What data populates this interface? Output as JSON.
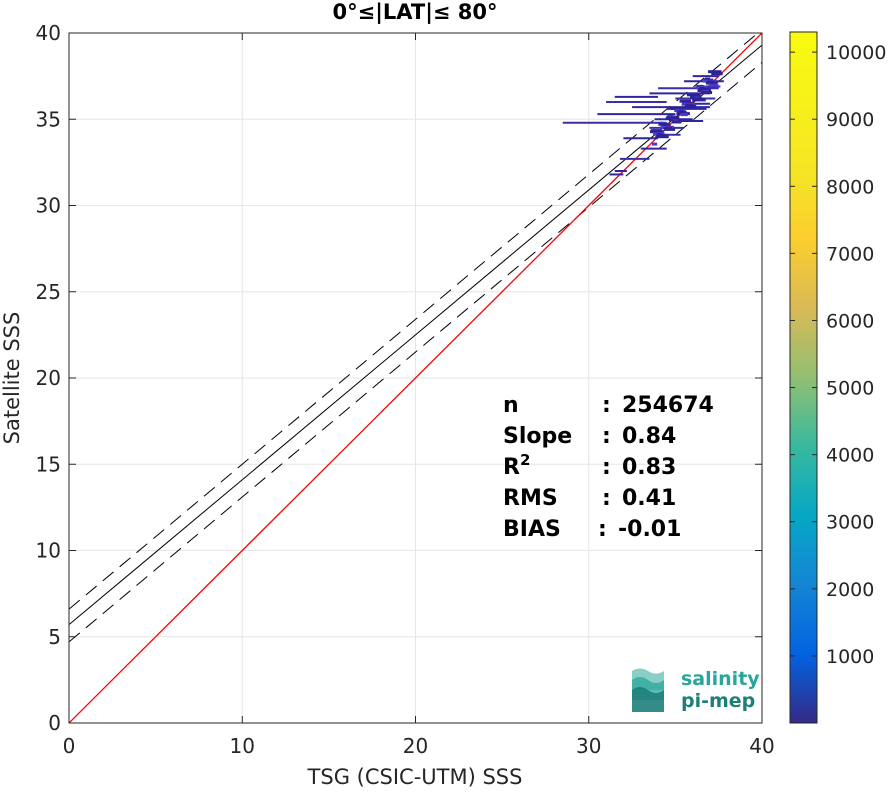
{
  "chart_data": {
    "type": "scatter",
    "title": "0°≤|LAT|≤ 80°",
    "xlabel": "TSG (CSIC-UTM) SSS",
    "ylabel": "Satellite SSS",
    "xlim": [
      0,
      40
    ],
    "ylim": [
      0,
      40
    ],
    "xticks": [
      "0",
      "10",
      "20",
      "30",
      "40"
    ],
    "yticks": [
      "0",
      "5",
      "10",
      "15",
      "20",
      "25",
      "30",
      "35",
      "40"
    ],
    "grid": true,
    "colorbar": {
      "min": 0,
      "max": 10300,
      "ticks": [
        "1000",
        "2000",
        "3000",
        "4000",
        "5000",
        "6000",
        "7000",
        "8000",
        "9000",
        "10000"
      ],
      "colormap": "parula"
    },
    "one_to_one_line": {
      "color": "#ff0000",
      "from": [
        0,
        0
      ],
      "to": [
        40,
        40
      ]
    },
    "regression_line": {
      "color": "#000000",
      "from": [
        0,
        5.7
      ],
      "to": [
        40,
        39.3
      ]
    },
    "regression_band_upper": {
      "style": "dashed",
      "from": [
        0,
        6.6
      ],
      "to": [
        40,
        40.2
      ]
    },
    "regression_band_lower": {
      "style": "dashed",
      "from": [
        0,
        4.7
      ],
      "to": [
        40,
        38.3
      ]
    },
    "points": [
      {
        "x": 28.5,
        "x2": 34.3,
        "y": 34.8
      },
      {
        "x": 30.5,
        "x2": 35.0,
        "y": 35.3
      },
      {
        "x": 32.5,
        "x2": 37.0,
        "y": 35.7
      },
      {
        "x": 31.0,
        "x2": 34.5,
        "y": 36.0
      },
      {
        "x": 31.5,
        "x2": 34.0,
        "y": 36.3
      },
      {
        "x": 33.5,
        "x2": 37.0,
        "y": 36.5
      },
      {
        "x": 34.0,
        "x2": 37.5,
        "y": 36.8
      },
      {
        "x": 35.5,
        "x2": 37.8,
        "y": 37.2
      },
      {
        "x": 36.0,
        "x2": 37.5,
        "y": 37.5
      },
      {
        "x": 35.0,
        "x2": 37.3,
        "y": 36.2
      },
      {
        "x": 34.5,
        "x2": 36.8,
        "y": 35.6
      },
      {
        "x": 33.8,
        "x2": 36.0,
        "y": 35.0
      },
      {
        "x": 33.5,
        "x2": 35.5,
        "y": 34.5
      },
      {
        "x": 32.0,
        "x2": 34.0,
        "y": 33.9
      },
      {
        "x": 33.0,
        "x2": 34.5,
        "y": 33.3
      },
      {
        "x": 31.8,
        "x2": 33.5,
        "y": 32.7
      },
      {
        "x": 31.5,
        "x2": 32.2,
        "y": 32.0
      },
      {
        "x": 31.2,
        "x2": 32.0,
        "y": 31.8
      },
      {
        "x": 34.0,
        "x2": 35.3,
        "y": 34.1
      },
      {
        "x": 35.2,
        "x2": 36.6,
        "y": 34.9
      },
      {
        "x": 35.8,
        "x2": 37.0,
        "y": 35.9
      },
      {
        "x": 36.3,
        "x2": 37.6,
        "y": 36.9
      }
    ],
    "stats": [
      {
        "label": "n",
        "sep": ":",
        "value": "254674"
      },
      {
        "label": "Slope",
        "sep": ":",
        "value": "0.84"
      },
      {
        "label": "R",
        "sup": "2",
        "sep": ":",
        "value": "0.83"
      },
      {
        "label": "RMS",
        "sep": ":",
        "value": "0.41"
      },
      {
        "label": "BIAS",
        "sep": ":",
        "value": "-0.01"
      }
    ]
  },
  "logo": {
    "line1": "salinity",
    "line2": "pi-mep",
    "colors": [
      "#2aa59a",
      "#1f7e7a"
    ]
  }
}
